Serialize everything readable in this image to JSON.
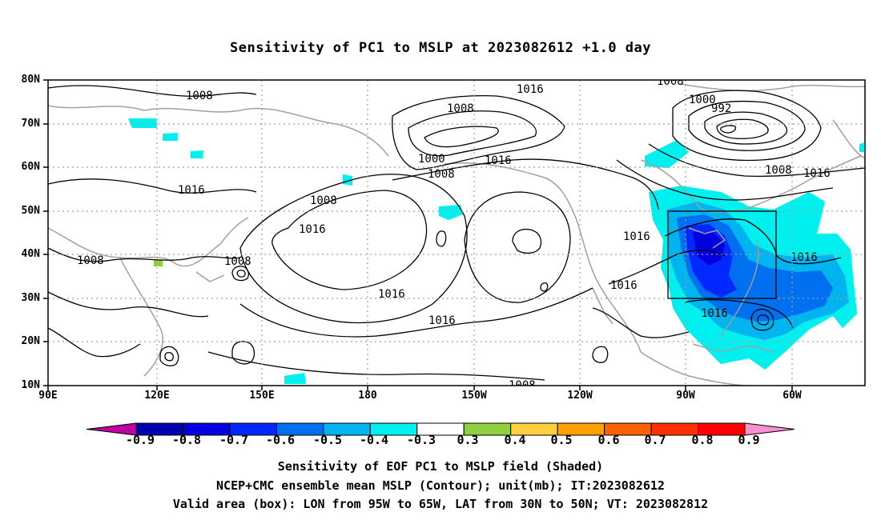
{
  "title": "Sensitivity of PC1 to MSLP at 2023082612 +1.0 day",
  "map": {
    "lon_ticks": [
      "90E",
      "120E",
      "150E",
      "180",
      "150W",
      "120W",
      "90W",
      "60W"
    ],
    "lat_ticks": [
      "80N",
      "70N",
      "60N",
      "50N",
      "40N",
      "30N",
      "20N",
      "10N"
    ],
    "contour_labels": [
      "1008",
      "1016",
      "1008",
      "1000",
      "992",
      "1008",
      "1016",
      "1000",
      "1008",
      "1016",
      "1016",
      "1008",
      "1016",
      "1008",
      "1016",
      "1016",
      "1016",
      "1016",
      "1008",
      "1008",
      "1016",
      "1016",
      "1008"
    ],
    "valid_box": {
      "lon_from": "95W",
      "lon_to": "65W",
      "lat_from": "30N",
      "lat_to": "50N"
    },
    "colors": {
      "land_outline": "#a0a0a0",
      "grid": "#a0a0a0",
      "contour": "#000000"
    }
  },
  "colorbar": {
    "labels": [
      "-0.9",
      "-0.8",
      "-0.7",
      "-0.6",
      "-0.5",
      "-0.4",
      "-0.3",
      "0.3",
      "0.4",
      "0.5",
      "0.6",
      "0.7",
      "0.8",
      "0.9"
    ],
    "colors": [
      "#0000b0",
      "#0000e0",
      "#0028ff",
      "#0070f0",
      "#00b4f0",
      "#00f0f0",
      "#ffffff",
      "#90d040",
      "#ffd040",
      "#ffa000",
      "#ff6000",
      "#ff3000",
      "#ff0000"
    ],
    "left_tip_color": "#c000a0",
    "right_tip_color": "#ff90d0"
  },
  "captions": [
    "Sensitivity of EOF PC1 to MSLP field (Shaded)",
    "NCEP+CMC ensemble mean MSLP (Contour); unit(mb); IT:2023082612",
    "Valid area (box): LON from 95W to 65W, LAT from 30N to 50N; VT: 2023082812"
  ]
}
